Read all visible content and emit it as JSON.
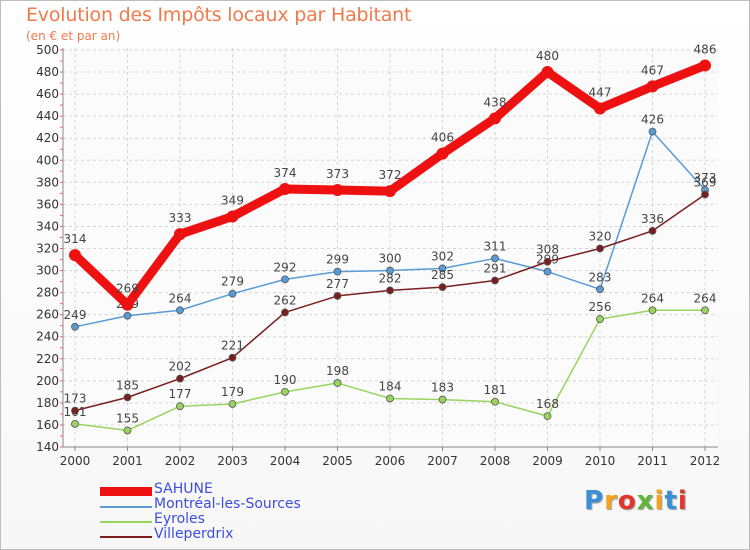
{
  "chart_data": {
    "type": "line",
    "title": "Evolution des Impôts locaux par Habitant",
    "subtitle": "(en € et par an)",
    "xlabel": "",
    "ylabel": "",
    "ylim": [
      140,
      500
    ],
    "ytick_step": 20,
    "grid": true,
    "legend_position": "bottom-left",
    "categories": [
      "2000",
      "2001",
      "2002",
      "2003",
      "2004",
      "2005",
      "2006",
      "2007",
      "2008",
      "2009",
      "2010",
      "2011",
      "2012"
    ],
    "series": [
      {
        "name": "SAHUNE",
        "color": "#ee1111",
        "values": [
          314,
          269,
          333,
          349,
          374,
          373,
          372,
          406,
          438,
          480,
          447,
          467,
          486
        ]
      },
      {
        "name": "Montréal-les-Sources",
        "color": "#5a9bd5",
        "values": [
          249,
          259,
          264,
          279,
          292,
          299,
          300,
          302,
          311,
          299,
          283,
          426,
          373
        ]
      },
      {
        "name": "Eyroles",
        "color": "#98d460",
        "values": [
          161,
          155,
          177,
          179,
          190,
          198,
          184,
          183,
          181,
          168,
          256,
          264,
          264
        ]
      },
      {
        "name": "Villeperdrix",
        "color": "#7a1f1f",
        "values": [
          173,
          185,
          202,
          221,
          262,
          277,
          282,
          285,
          291,
          308,
          320,
          336,
          369
        ]
      }
    ]
  },
  "branding": {
    "logo_text": "Proxiti",
    "logo_colors": [
      "#3b8fd6",
      "#f6a21b",
      "#e2342b",
      "#5fb63a",
      "#f6a21b",
      "#3b8fd6",
      "#e2342b"
    ]
  }
}
